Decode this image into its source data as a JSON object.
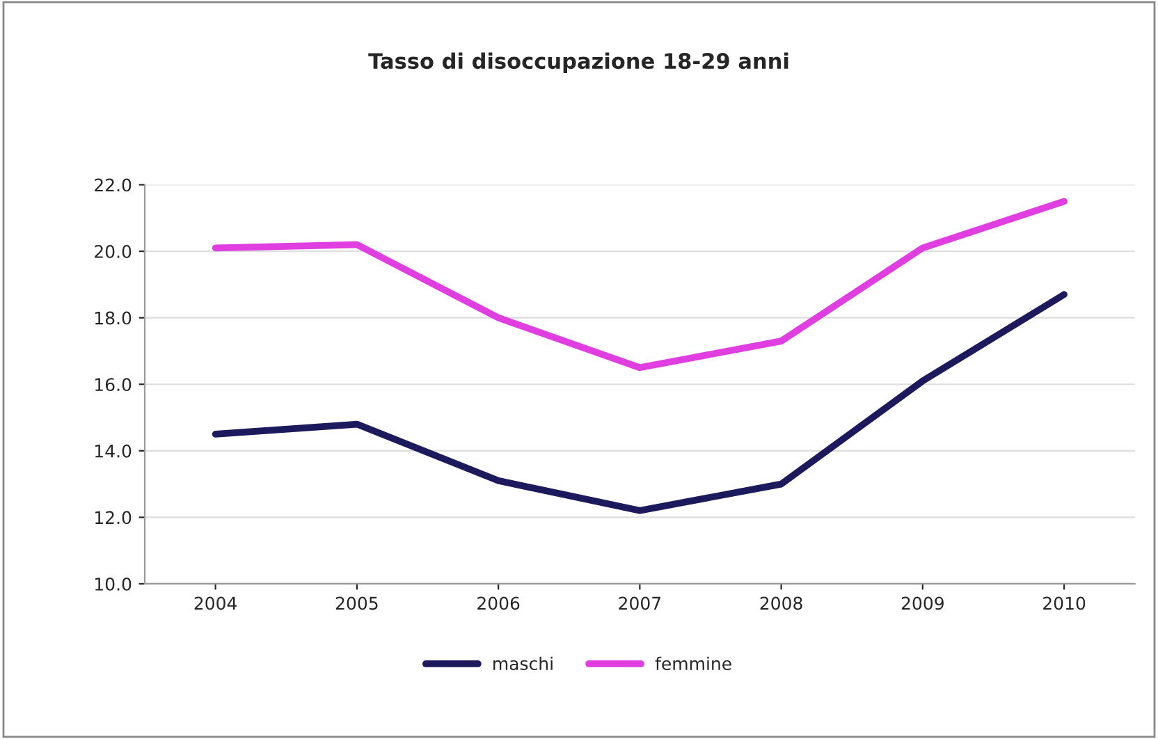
{
  "chart_data": {
    "type": "line",
    "title": "Tasso di disoccupazione 18-29 anni",
    "categories": [
      "2004",
      "2005",
      "2006",
      "2007",
      "2008",
      "2009",
      "2010"
    ],
    "series": [
      {
        "name": "maschi",
        "color": "#1c1a5c",
        "values": [
          14.5,
          14.8,
          13.1,
          12.2,
          13.0,
          16.1,
          18.7
        ]
      },
      {
        "name": "femmine",
        "color": "#e03ee0",
        "values": [
          20.1,
          20.2,
          18.0,
          16.5,
          17.3,
          20.1,
          21.5
        ]
      }
    ],
    "ylim": [
      10,
      22
    ],
    "yticks": [
      {
        "value": 10,
        "label": "10.0"
      },
      {
        "value": 12,
        "label": "12.0"
      },
      {
        "value": 14,
        "label": "14.0"
      },
      {
        "value": 16,
        "label": "16.0"
      },
      {
        "value": 18,
        "label": "18.0"
      },
      {
        "value": 20,
        "label": "20.0"
      },
      {
        "value": 22,
        "label": "22.0"
      }
    ],
    "grid": "y",
    "legend": "bottom",
    "marker": "none",
    "line_style": "solid"
  }
}
